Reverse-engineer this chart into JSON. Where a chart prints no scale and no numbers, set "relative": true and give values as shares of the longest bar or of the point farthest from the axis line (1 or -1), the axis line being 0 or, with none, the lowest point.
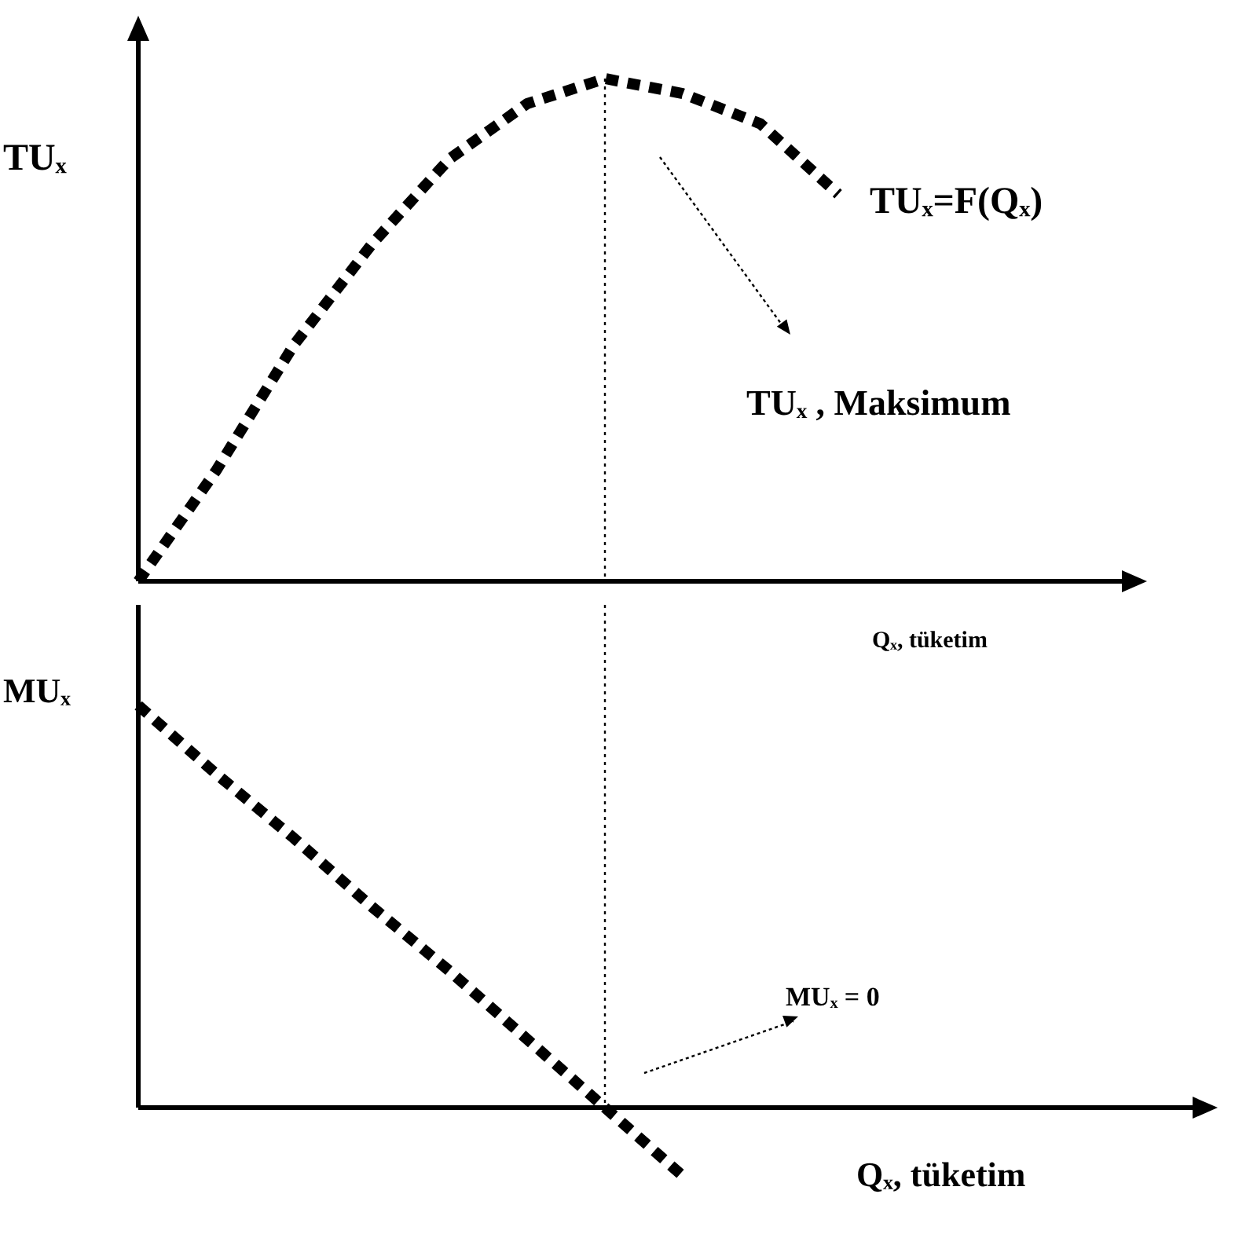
{
  "chart_data": [
    {
      "type": "line",
      "ylabel": "TUₓ",
      "xlabel": "Qₓ, tüketim",
      "relative": true,
      "categories": [
        null,
        null,
        null,
        null,
        null,
        null,
        null,
        null,
        null,
        null,
        null,
        null,
        null,
        null,
        null
      ],
      "series": [
        {
          "name": "TUₓ=F(Qₓ)",
          "color": "#000000",
          "values": [
            0,
            0.22,
            0.47,
            0.67,
            0.84,
            0.95,
            1,
            0.97,
            0.91,
            0.77,
            null,
            null,
            null,
            null,
            null
          ]
        }
      ],
      "line_style": "dashed",
      "marker": "none",
      "legend": false,
      "grid": false,
      "annotations": [
        "TUₓ , Maksimum"
      ]
    },
    {
      "type": "line",
      "ylabel": "MUₓ",
      "xlabel": "Qₓ, tüketim",
      "relative": true,
      "categories": [
        null,
        null,
        null,
        null,
        null,
        null,
        null,
        null,
        null,
        null,
        null,
        null,
        null,
        null,
        null
      ],
      "series": [
        {
          "color": "#000000",
          "values": [
            1,
            0.83,
            0.67,
            0.5,
            0.34,
            0.17,
            0,
            -0.17,
            null,
            null,
            null,
            null,
            null,
            null,
            null
          ]
        }
      ],
      "line_style": "dashed",
      "marker": "none",
      "legend": false,
      "grid": false,
      "annotations": [
        "MUₓ = 0"
      ]
    }
  ]
}
